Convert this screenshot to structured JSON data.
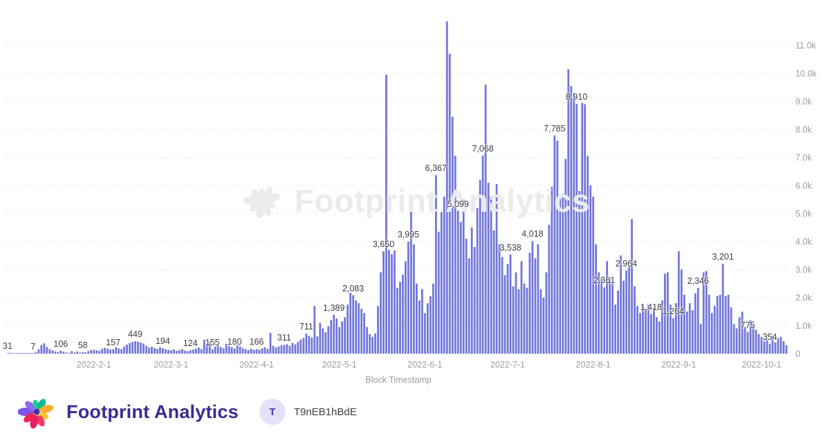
{
  "chart_data": {
    "type": "bar",
    "title": "",
    "xlabel": "Block Timestamp",
    "ylabel": "",
    "legend": null,
    "grid": "dashed horizontal",
    "ylim": [
      0,
      11850
    ],
    "bar_color": "#7176D8",
    "y_ticks": [
      {
        "label": "0",
        "value": 0
      },
      {
        "label": "1.0k",
        "value": 1000
      },
      {
        "label": "2.0k",
        "value": 2000
      },
      {
        "label": "3.0k",
        "value": 3000
      },
      {
        "label": "4.0k",
        "value": 4000
      },
      {
        "label": "5.0k",
        "value": 5000
      },
      {
        "label": "6.0k",
        "value": 6000
      },
      {
        "label": "7.0k",
        "value": 7000
      },
      {
        "label": "8.0k",
        "value": 8000
      },
      {
        "label": "9.0k",
        "value": 9000
      },
      {
        "label": "10.0k",
        "value": 10000
      },
      {
        "label": "11.0k",
        "value": 11000
      }
    ],
    "x_ticks": [
      {
        "label": "2022-2-1",
        "index": 31
      },
      {
        "label": "2022-3-1",
        "index": 59
      },
      {
        "label": "2022-4-1",
        "index": 90
      },
      {
        "label": "2022-5-1",
        "index": 120
      },
      {
        "label": "2022-6-1",
        "index": 151
      },
      {
        "label": "2022-7-1",
        "index": 181
      },
      {
        "label": "2022-8-1",
        "index": 212
      },
      {
        "label": "2022-9-1",
        "index": 243
      },
      {
        "label": "2022-10-1",
        "index": 273
      }
    ],
    "x_start_date": "2022-1-1",
    "x_end_date": "2022-10-10",
    "values": [
      31,
      18,
      10,
      6,
      4,
      9,
      14,
      8,
      5,
      7,
      60,
      150,
      310,
      370,
      240,
      160,
      120,
      80,
      55,
      106,
      70,
      40,
      30,
      90,
      45,
      75,
      35,
      58,
      50,
      95,
      130,
      140,
      120,
      100,
      170,
      210,
      180,
      150,
      157,
      230,
      190,
      160,
      250,
      320,
      380,
      420,
      449,
      430,
      400,
      360,
      280,
      220,
      250,
      200,
      170,
      230,
      194,
      160,
      140,
      120,
      150,
      100,
      130,
      160,
      110,
      90,
      124,
      150,
      180,
      220,
      160,
      500,
      310,
      420,
      155,
      260,
      300,
      240,
      190,
      350,
      280,
      230,
      180,
      310,
      260,
      200,
      160,
      130,
      170,
      140,
      166,
      140,
      190,
      230,
      170,
      740,
      280,
      220,
      260,
      300,
      311,
      340,
      280,
      380,
      330,
      420,
      500,
      560,
      711,
      640,
      580,
      1700,
      620,
      1100,
      900,
      760,
      980,
      1200,
      1389,
      1250,
      950,
      1150,
      1300,
      1750,
      2170,
      2083,
      1900,
      1800,
      1600,
      1450,
      950,
      700,
      600,
      720,
      1700,
      2900,
      3650,
      9950,
      3700,
      3550,
      3680,
      2350,
      2560,
      2820,
      3300,
      3995,
      5090,
      3900,
      2500,
      1900,
      2300,
      1450,
      1800,
      2050,
      2500,
      6367,
      4350,
      5050,
      5600,
      11850,
      10700,
      8450,
      7060,
      5099,
      4700,
      5500,
      4100,
      3400,
      4500,
      3800,
      5200,
      6200,
      7068,
      9600,
      6100,
      5600,
      4400,
      6050,
      3900,
      3450,
      2800,
      3200,
      3538,
      2400,
      2900,
      2300,
      3300,
      2500,
      2350,
      3600,
      4018,
      3400,
      3900,
      2300,
      2000,
      2900,
      4600,
      5950,
      7785,
      7600,
      5550,
      5700,
      6950,
      10150,
      9550,
      9300,
      8910,
      5800,
      8950,
      8900,
      7050,
      6000,
      5600,
      3900,
      2900,
      2700,
      2361,
      3300,
      2700,
      2500,
      1750,
      2250,
      3500,
      2600,
      2964,
      3100,
      4800,
      2400,
      1700,
      1450,
      1700,
      1600,
      1750,
      1418,
      1650,
      1300,
      1150,
      1900,
      2850,
      2900,
      1750,
      1264,
      1800,
      3650,
      3000,
      2100,
      1500,
      1800,
      1550,
      2150,
      2346,
      1050,
      2900,
      2950,
      2100,
      1450,
      1700,
      2050,
      2100,
      3201,
      2050,
      2100,
      1650,
      1050,
      900,
      1300,
      1500,
      950,
      775,
      1200,
      1050,
      850,
      700,
      600,
      450,
      500,
      354,
      650,
      400,
      550,
      600,
      450,
      300
    ],
    "point_labels": [
      {
        "text": "31",
        "index": 0
      },
      {
        "text": "7",
        "index": 9
      },
      {
        "text": "106",
        "index": 19
      },
      {
        "text": "58",
        "index": 27
      },
      {
        "text": "157",
        "index": 38
      },
      {
        "text": "449",
        "index": 46
      },
      {
        "text": "194",
        "index": 56
      },
      {
        "text": "124",
        "index": 66
      },
      {
        "text": "155",
        "index": 74
      },
      {
        "text": "180",
        "index": 82
      },
      {
        "text": "166",
        "index": 90
      },
      {
        "text": "311",
        "index": 100
      },
      {
        "text": "711",
        "index": 108
      },
      {
        "text": "1,389",
        "index": 118
      },
      {
        "text": "2,083",
        "index": 125
      },
      {
        "text": "3,650",
        "index": 136
      },
      {
        "text": "3,995",
        "index": 145
      },
      {
        "text": "6,367",
        "index": 155
      },
      {
        "text": "5,099",
        "index": 163
      },
      {
        "text": "7,068",
        "index": 172
      },
      {
        "text": "3,538",
        "index": 182
      },
      {
        "text": "4,018",
        "index": 190
      },
      {
        "text": "7,785",
        "index": 198
      },
      {
        "text": "8,910",
        "index": 206
      },
      {
        "text": "2,361",
        "index": 216
      },
      {
        "text": "2,964",
        "index": 224
      },
      {
        "text": "1,418",
        "index": 233
      },
      {
        "text": "1,264",
        "index": 241
      },
      {
        "text": "2,346",
        "index": 250
      },
      {
        "text": "3,201",
        "index": 259
      },
      {
        "text": "775",
        "index": 268
      },
      {
        "text": "354",
        "index": 276
      }
    ]
  },
  "watermark": {
    "text": "Footprint Analytics"
  },
  "footer": {
    "brand": "Footprint Analytics",
    "badge_letter": "T",
    "user_id": "T9nEB1hBdE"
  },
  "colors": {
    "bar": "#7176D8",
    "grid": "#E8E8EF",
    "axis_text": "#9B9BA3",
    "label_text": "#3C3C45",
    "watermark": "#EBEBEE",
    "brand_text": "#392C93",
    "badge_bg": "#E3E0F8",
    "badge_text": "#4A3BBF"
  }
}
